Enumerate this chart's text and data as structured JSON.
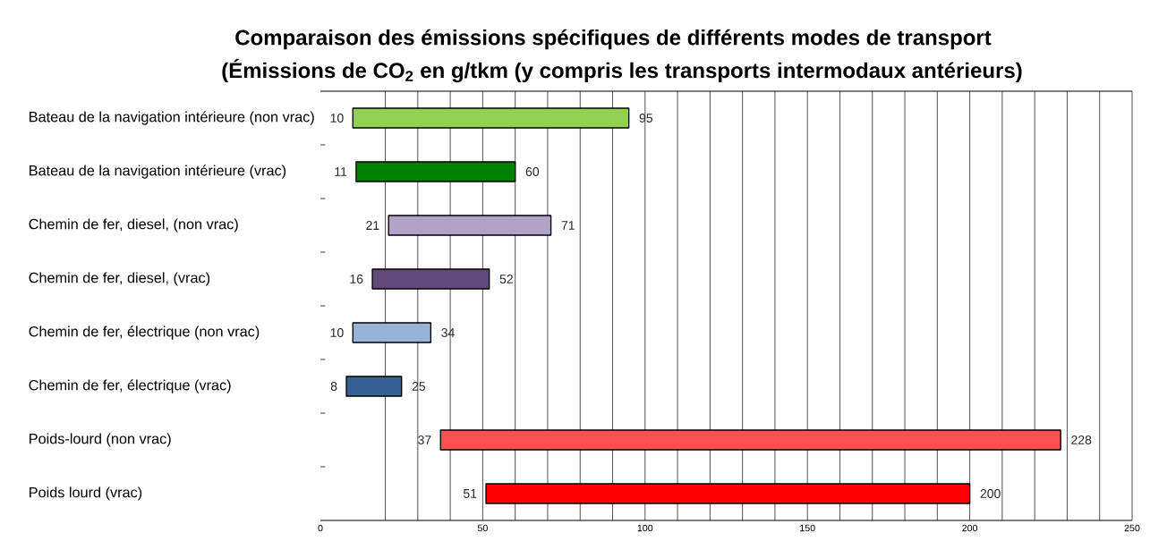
{
  "chart_data": {
    "type": "bar",
    "orientation": "horizontal",
    "title": "Comparaison des émissions spécifiques de différents modes de transport",
    "subtitle": "(Émissions de CO$_{2}$ en g/tkm (y compris les transports intermodaux antérieurs)",
    "categories": [
      "Bateau de la navigation intérieure (non vrac)",
      "Bateau de la navigation intérieure (vrac)",
      "Chemin de fer, diesel, (non vrac)",
      "Chemin de fer, diesel, (vrac)",
      "Chemin de fer, électrique (non vrac)",
      "Chemin de fer, électrique (vrac)",
      "Poids-lourd (non vrac)",
      "Poids lourd (vrac)"
    ],
    "base": [
      10,
      11,
      21,
      16,
      10,
      8,
      37,
      51
    ],
    "values": [
      85,
      49,
      50,
      36,
      24,
      17,
      191,
      149
    ],
    "colors": [
      "#92d050",
      "#008000",
      "#b3a2c7",
      "#604a7b",
      "#95b3d7",
      "#376092",
      "#ff5050",
      "#ff0000"
    ],
    "xlim": [
      0,
      250
    ],
    "xticks": [
      0,
      {
        "value": 20,
        "label": null
      },
      {
        "value": 30,
        "label": null
      },
      {
        "value": 40,
        "label": null
      },
      50,
      {
        "value": 60,
        "label": null
      },
      {
        "value": 70,
        "label": null
      },
      {
        "value": 80,
        "label": null
      },
      {
        "value": 90,
        "label": null
      },
      100,
      {
        "value": 110,
        "label": null
      },
      {
        "value": 120,
        "label": null
      },
      {
        "value": 130,
        "label": null
      },
      {
        "value": 140,
        "label": null
      },
      150,
      {
        "value": 160,
        "label": null
      },
      {
        "value": 170,
        "label": null
      },
      {
        "value": 180,
        "label": null
      },
      {
        "value": 190,
        "label": null
      },
      200,
      {
        "value": 210,
        "label": null
      },
      {
        "value": 220,
        "label": null
      },
      {
        "value": 230,
        "label": null
      },
      {
        "value": 240,
        "label": null
      },
      250
    ],
    "grid": "x",
    "annotations": [
      {
        "text": "10",
        "x": 10,
        "y": "Bateau de la navigation intérieure (non vrac)"
      },
      {
        "text": "95",
        "x": 95,
        "y": "Bateau de la navigation intérieure (non vrac)"
      },
      {
        "text": "11",
        "x": 11,
        "y": "Bateau de la navigation intérieure (vrac)"
      },
      {
        "text": "60",
        "x": 60,
        "y": "Bateau de la navigation intérieure (vrac)"
      },
      {
        "text": "21",
        "x": 21,
        "y": "Chemin de fer, diesel, (non vrac)"
      },
      {
        "text": "71",
        "x": 71,
        "y": "Chemin de fer, diesel, (non vrac)"
      },
      {
        "text": "16",
        "x": 16,
        "y": "Chemin de fer, diesel, (vrac)"
      },
      {
        "text": "52",
        "x": 52,
        "y": "Chemin de fer, diesel, (vrac)"
      },
      {
        "text": "10",
        "x": 10,
        "y": "Chemin de fer, électrique (non vrac)"
      },
      {
        "text": "34",
        "x": 34,
        "y": "Chemin de fer, électrique (non vrac)"
      },
      {
        "text": "8",
        "x": 8,
        "y": "Chemin de fer, électrique (vrac)"
      },
      {
        "text": "25",
        "x": 25,
        "y": "Chemin de fer, électrique (vrac)"
      },
      {
        "text": "37",
        "x": 37,
        "y": "Poids-lourd (non vrac)"
      },
      {
        "text": "228",
        "x": 228,
        "y": "Poids-lourd (non vrac)"
      },
      {
        "text": "51",
        "x": 51,
        "y": "Poids lourd (vrac)"
      },
      {
        "text": "200",
        "x": 200,
        "y": "Poids lourd (vrac)"
      }
    ]
  }
}
